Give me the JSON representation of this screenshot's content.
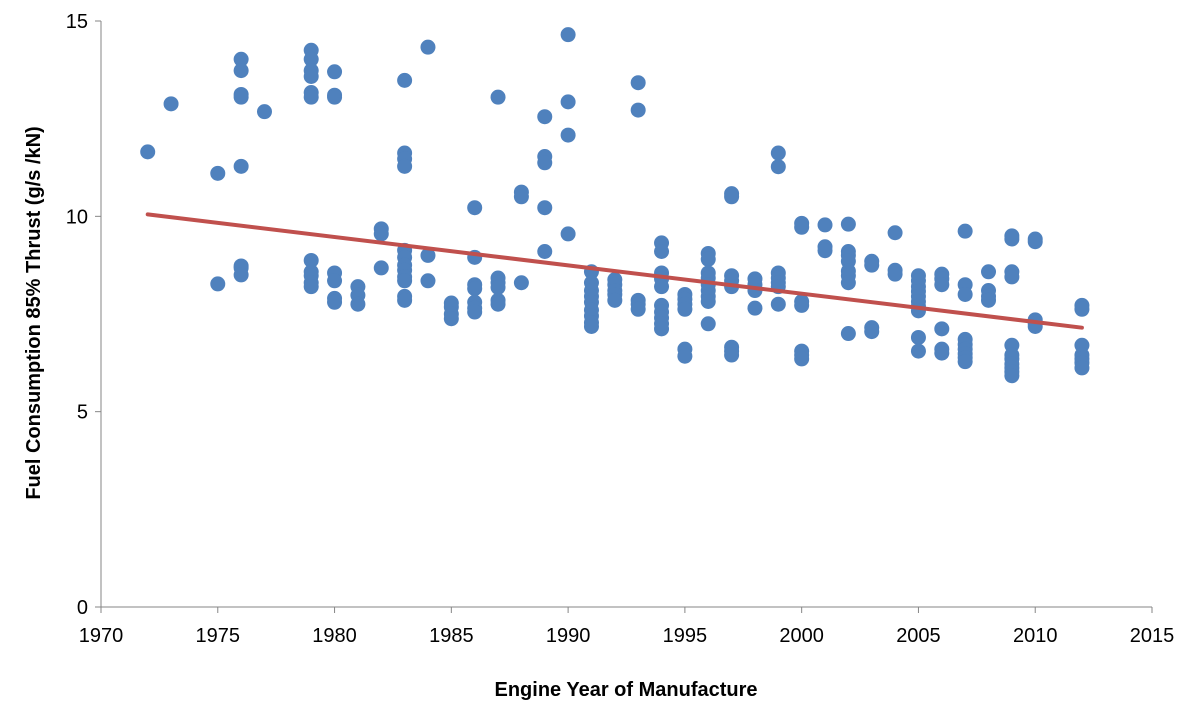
{
  "chart_data": {
    "type": "scatter",
    "title": "",
    "xlabel": "Engine Year of Manufacture",
    "ylabel": "Fuel Consumption 85% Thrust (g/s /kN)",
    "xlim": [
      1970,
      2015
    ],
    "ylim": [
      0,
      15
    ],
    "xticks": [
      "1970",
      "1975",
      "1980",
      "1985",
      "1990",
      "1995",
      "2000",
      "2005",
      "2010",
      "2015"
    ],
    "yticks": [
      "0",
      "5",
      "10",
      "15"
    ],
    "grid": false,
    "legend": "none",
    "colors": {
      "points": "#4f81bd",
      "trendline": "#c0504d",
      "axis": "#868686"
    },
    "series": [
      {
        "points": [
          [
            1972,
            11.65
          ],
          [
            1973,
            12.88
          ],
          [
            1975,
            11.1
          ],
          [
            1975,
            8.27
          ],
          [
            1976,
            14.02
          ],
          [
            1976,
            13.73
          ],
          [
            1976,
            13.12
          ],
          [
            1976,
            13.05
          ],
          [
            1976,
            11.28
          ],
          [
            1976,
            8.73
          ],
          [
            1976,
            8.68
          ],
          [
            1976,
            8.5
          ],
          [
            1977,
            12.68
          ],
          [
            1979,
            14.25
          ],
          [
            1979,
            14.02
          ],
          [
            1979,
            13.73
          ],
          [
            1979,
            13.58
          ],
          [
            1979,
            13.17
          ],
          [
            1979,
            13.05
          ],
          [
            1979,
            8.87
          ],
          [
            1979,
            8.58
          ],
          [
            1979,
            8.48
          ],
          [
            1979,
            8.3
          ],
          [
            1979,
            8.2
          ],
          [
            1980,
            13.7
          ],
          [
            1980,
            13.1
          ],
          [
            1980,
            13.05
          ],
          [
            1980,
            8.55
          ],
          [
            1980,
            8.35
          ],
          [
            1980,
            7.9
          ],
          [
            1980,
            7.8
          ],
          [
            1981,
            8.2
          ],
          [
            1981,
            7.98
          ],
          [
            1981,
            7.75
          ],
          [
            1982,
            9.68
          ],
          [
            1982,
            9.55
          ],
          [
            1982,
            8.68
          ],
          [
            1983,
            13.48
          ],
          [
            1983,
            11.62
          ],
          [
            1983,
            11.47
          ],
          [
            1983,
            11.28
          ],
          [
            1983,
            9.13
          ],
          [
            1983,
            8.95
          ],
          [
            1983,
            8.75
          ],
          [
            1983,
            8.62
          ],
          [
            1983,
            8.45
          ],
          [
            1983,
            8.35
          ],
          [
            1983,
            7.95
          ],
          [
            1983,
            7.85
          ],
          [
            1984,
            14.33
          ],
          [
            1984,
            9.0
          ],
          [
            1984,
            8.35
          ],
          [
            1985,
            7.78
          ],
          [
            1985,
            7.68
          ],
          [
            1985,
            7.5
          ],
          [
            1985,
            7.38
          ],
          [
            1986,
            10.22
          ],
          [
            1986,
            8.95
          ],
          [
            1986,
            8.25
          ],
          [
            1986,
            8.15
          ],
          [
            1986,
            7.8
          ],
          [
            1986,
            7.65
          ],
          [
            1986,
            7.55
          ],
          [
            1987,
            13.05
          ],
          [
            1987,
            8.42
          ],
          [
            1987,
            8.3
          ],
          [
            1987,
            8.18
          ],
          [
            1987,
            7.85
          ],
          [
            1987,
            7.75
          ],
          [
            1988,
            10.62
          ],
          [
            1988,
            10.5
          ],
          [
            1988,
            8.3
          ],
          [
            1989,
            12.55
          ],
          [
            1989,
            11.53
          ],
          [
            1989,
            11.37
          ],
          [
            1989,
            10.22
          ],
          [
            1989,
            9.1
          ],
          [
            1990,
            14.65
          ],
          [
            1990,
            12.93
          ],
          [
            1990,
            12.08
          ],
          [
            1990,
            9.55
          ],
          [
            1991,
            8.58
          ],
          [
            1991,
            8.3
          ],
          [
            1991,
            8.1
          ],
          [
            1991,
            7.95
          ],
          [
            1991,
            7.8
          ],
          [
            1991,
            7.6
          ],
          [
            1991,
            7.45
          ],
          [
            1991,
            7.28
          ],
          [
            1991,
            7.18
          ],
          [
            1992,
            8.38
          ],
          [
            1992,
            8.25
          ],
          [
            1992,
            8.1
          ],
          [
            1992,
            8.0
          ],
          [
            1992,
            7.85
          ],
          [
            1993,
            13.42
          ],
          [
            1993,
            12.72
          ],
          [
            1993,
            7.85
          ],
          [
            1993,
            7.75
          ],
          [
            1993,
            7.62
          ],
          [
            1994,
            9.32
          ],
          [
            1994,
            9.1
          ],
          [
            1994,
            8.55
          ],
          [
            1994,
            8.4
          ],
          [
            1994,
            8.2
          ],
          [
            1994,
            7.72
          ],
          [
            1994,
            7.55
          ],
          [
            1994,
            7.4
          ],
          [
            1994,
            7.25
          ],
          [
            1994,
            7.12
          ],
          [
            1995,
            8.0
          ],
          [
            1995,
            7.88
          ],
          [
            1995,
            7.75
          ],
          [
            1995,
            7.62
          ],
          [
            1995,
            6.6
          ],
          [
            1995,
            6.42
          ],
          [
            1996,
            9.05
          ],
          [
            1996,
            8.9
          ],
          [
            1996,
            8.55
          ],
          [
            1996,
            8.42
          ],
          [
            1996,
            8.25
          ],
          [
            1996,
            8.1
          ],
          [
            1996,
            7.95
          ],
          [
            1996,
            7.82
          ],
          [
            1996,
            7.25
          ],
          [
            1997,
            10.58
          ],
          [
            1997,
            10.5
          ],
          [
            1997,
            8.48
          ],
          [
            1997,
            8.35
          ],
          [
            1997,
            8.2
          ],
          [
            1997,
            6.65
          ],
          [
            1997,
            6.55
          ],
          [
            1997,
            6.45
          ],
          [
            1998,
            8.4
          ],
          [
            1998,
            8.25
          ],
          [
            1998,
            8.1
          ],
          [
            1998,
            7.65
          ],
          [
            1999,
            11.62
          ],
          [
            1999,
            11.27
          ],
          [
            1999,
            8.55
          ],
          [
            1999,
            8.42
          ],
          [
            1999,
            8.3
          ],
          [
            1999,
            8.2
          ],
          [
            1999,
            7.75
          ],
          [
            2000,
            9.82
          ],
          [
            2000,
            9.72
          ],
          [
            2000,
            7.82
          ],
          [
            2000,
            7.72
          ],
          [
            2000,
            6.55
          ],
          [
            2000,
            6.45
          ],
          [
            2000,
            6.35
          ],
          [
            2001,
            9.78
          ],
          [
            2001,
            9.22
          ],
          [
            2001,
            9.12
          ],
          [
            2002,
            9.8
          ],
          [
            2002,
            9.1
          ],
          [
            2002,
            9.0
          ],
          [
            2002,
            8.85
          ],
          [
            2002,
            8.6
          ],
          [
            2002,
            8.48
          ],
          [
            2002,
            8.3
          ],
          [
            2002,
            7.0
          ],
          [
            2003,
            8.85
          ],
          [
            2003,
            8.75
          ],
          [
            2003,
            7.15
          ],
          [
            2003,
            7.05
          ],
          [
            2004,
            9.58
          ],
          [
            2004,
            8.62
          ],
          [
            2004,
            8.52
          ],
          [
            2005,
            8.48
          ],
          [
            2005,
            8.35
          ],
          [
            2005,
            8.2
          ],
          [
            2005,
            8.08
          ],
          [
            2005,
            7.95
          ],
          [
            2005,
            7.82
          ],
          [
            2005,
            7.7
          ],
          [
            2005,
            7.58
          ],
          [
            2005,
            6.9
          ],
          [
            2005,
            6.55
          ],
          [
            2006,
            8.52
          ],
          [
            2006,
            8.4
          ],
          [
            2006,
            8.25
          ],
          [
            2006,
            7.12
          ],
          [
            2006,
            6.6
          ],
          [
            2006,
            6.5
          ],
          [
            2007,
            9.62
          ],
          [
            2007,
            8.25
          ],
          [
            2007,
            8.0
          ],
          [
            2007,
            6.85
          ],
          [
            2007,
            6.72
          ],
          [
            2007,
            6.6
          ],
          [
            2007,
            6.48
          ],
          [
            2007,
            6.38
          ],
          [
            2007,
            6.28
          ],
          [
            2008,
            8.58
          ],
          [
            2008,
            8.1
          ],
          [
            2008,
            7.95
          ],
          [
            2008,
            7.85
          ],
          [
            2009,
            9.5
          ],
          [
            2009,
            9.42
          ],
          [
            2009,
            8.58
          ],
          [
            2009,
            8.45
          ],
          [
            2009,
            6.7
          ],
          [
            2009,
            6.45
          ],
          [
            2009,
            6.35
          ],
          [
            2009,
            6.22
          ],
          [
            2009,
            6.12
          ],
          [
            2009,
            6.02
          ],
          [
            2009,
            5.92
          ],
          [
            2010,
            9.42
          ],
          [
            2010,
            9.35
          ],
          [
            2010,
            7.35
          ],
          [
            2010,
            7.25
          ],
          [
            2010,
            7.18
          ],
          [
            2012,
            7.72
          ],
          [
            2012,
            7.62
          ],
          [
            2012,
            6.7
          ],
          [
            2012,
            6.45
          ],
          [
            2012,
            6.35
          ],
          [
            2012,
            6.25
          ],
          [
            2012,
            6.12
          ]
        ]
      }
    ],
    "trendline": {
      "x": [
        1972,
        2012
      ],
      "y": [
        10.05,
        7.15
      ]
    }
  }
}
